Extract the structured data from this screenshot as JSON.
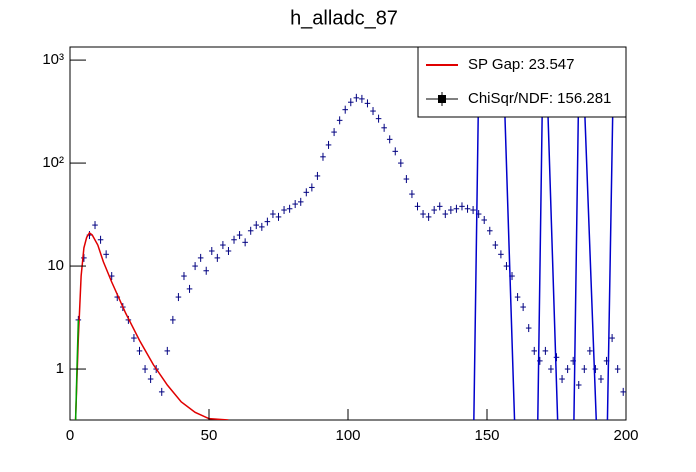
{
  "chart_data": {
    "type": "histogram",
    "title": "h_alladc_87",
    "name": "ChiSqr/NDF: 156.281",
    "color": "#000080",
    "bins": [
      0,
      2,
      4,
      6,
      8,
      10,
      12,
      14,
      16,
      18,
      20,
      22,
      24,
      26,
      28,
      30,
      32,
      34,
      36,
      38,
      40,
      42,
      44,
      46,
      48,
      50,
      52,
      54,
      56,
      58,
      60,
      62,
      64,
      66,
      68,
      70,
      72,
      74,
      76,
      78,
      80,
      82,
      84,
      86,
      88,
      90,
      92,
      94,
      96,
      98,
      100,
      102,
      104,
      106,
      108,
      110,
      112,
      114,
      116,
      118,
      120,
      122,
      124,
      126,
      128,
      130,
      132,
      134,
      136,
      138,
      140,
      142,
      144,
      146,
      148,
      150,
      152,
      154,
      156,
      158,
      160,
      162,
      164,
      166,
      168,
      170,
      172,
      174,
      176,
      178,
      180,
      182,
      184,
      186,
      188,
      190,
      192,
      194,
      196,
      198,
      200
    ],
    "values": [
      null,
      3,
      12,
      20,
      25,
      18,
      13,
      8,
      5,
      4,
      3,
      2,
      1.5,
      1,
      0.8,
      1,
      0.6,
      1.5,
      3,
      5,
      8,
      6,
      10,
      12,
      9,
      14,
      12,
      16,
      14,
      18,
      20,
      17,
      22,
      25,
      24,
      27,
      32,
      30,
      35,
      36,
      40,
      42,
      52,
      58,
      75,
      115,
      150,
      200,
      260,
      330,
      390,
      430,
      420,
      380,
      320,
      270,
      220,
      170,
      130,
      100,
      70,
      50,
      38,
      32,
      30,
      35,
      38,
      32,
      35,
      36,
      38,
      36,
      35,
      32,
      28,
      22,
      16,
      13,
      10,
      8,
      5,
      4,
      2.5,
      1.5,
      1.2,
      1.5,
      1,
      1.3,
      0.8,
      1,
      1.2,
      0.7,
      1,
      1.5,
      1,
      0.8,
      1.2,
      2,
      1,
      0.6
    ],
    "lines": [
      {
        "name": "SP Gap: 23.547",
        "color": "#e00000",
        "x": [
          2,
          3,
          4,
          5,
          6,
          7,
          8,
          10,
          12,
          15,
          20,
          25,
          30,
          35,
          40,
          45,
          50,
          57
        ],
        "y": [
          0.32,
          2,
          8,
          15,
          19,
          21,
          20,
          16,
          11,
          7,
          3.5,
          1.9,
          1.1,
          0.7,
          0.48,
          0.38,
          0.33,
          0.32
        ]
      },
      {
        "color": "#00a000",
        "x": [
          2,
          2.5,
          3
        ],
        "y": [
          0.3,
          1,
          3
        ]
      },
      {
        "color": "#0000cc",
        "x": [
          145,
          147.5,
          155,
          160.5,
          168,
          170.5,
          176,
          181,
          183.5,
          190,
          193,
          196
        ],
        "y": [
          0.1,
          5000,
          5000,
          0.1,
          0.1,
          5000,
          0.1,
          0.1,
          5000,
          0.1,
          0.1,
          5000
        ]
      }
    ],
    "xlim": [
      0,
      200
    ],
    "xticks": [
      0,
      50,
      100,
      150,
      200
    ],
    "ylim": [
      0.32,
      1340
    ],
    "yticks": [
      1,
      10,
      {
        "value": 100,
        "label": "10²"
      },
      {
        "value": 1000,
        "label": "10³"
      }
    ],
    "log_y": true,
    "legend": "upper right"
  }
}
